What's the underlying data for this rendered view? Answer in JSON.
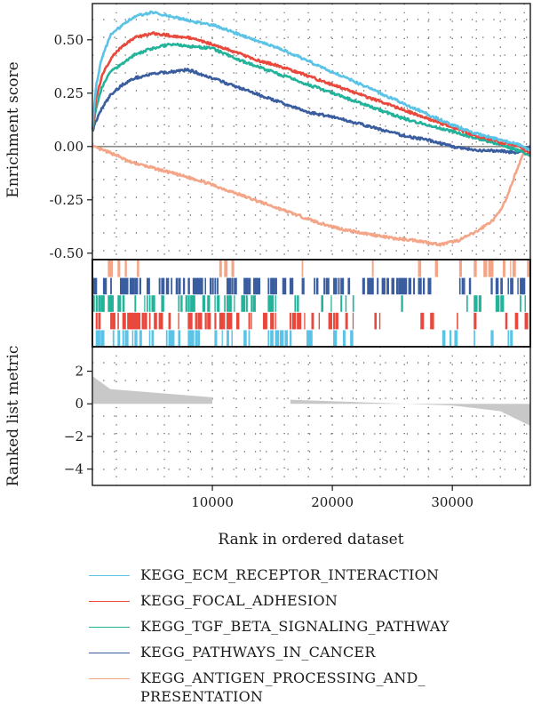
{
  "chart_data": {
    "type": "line",
    "xlabel": "Rank in ordered dataset",
    "xlim": [
      0,
      36500
    ],
    "x_ticks": [
      10000,
      20000,
      30000
    ],
    "x_tick_labels": [
      "10000",
      "20000",
      "30000"
    ],
    "panels": {
      "enrichment": {
        "ylabel": "Enrichment score",
        "ylim": [
          -0.53,
          0.67
        ],
        "y_ticks": [
          0.5,
          0.25,
          0.0,
          -0.25,
          -0.5
        ],
        "y_tick_labels": [
          "0.50",
          "0.25",
          "0.00",
          "-0.25",
          "-0.50"
        ]
      },
      "ranked_metric": {
        "ylabel": "Ranked list metric",
        "ylim": [
          -5,
          3.5
        ],
        "y_ticks": [
          2,
          0,
          -2,
          -4
        ],
        "y_tick_labels": [
          "2",
          "0",
          "−2",
          "−4"
        ],
        "fill_color": "#c8c8c8",
        "gap_range": [
          10000,
          16500
        ]
      }
    },
    "series": [
      {
        "name": "KEGG_ECM_RECEPTOR_INTERACTION",
        "color": "#5bc3e6",
        "x": [
          0,
          300,
          800,
          1500,
          2500,
          3500,
          5000,
          6500,
          8000,
          10000,
          12000,
          14000,
          16000,
          18000,
          20000,
          22000,
          24000,
          26000,
          28000,
          30000,
          32000,
          34000,
          35500,
          36500
        ],
        "y": [
          0.09,
          0.28,
          0.42,
          0.52,
          0.57,
          0.61,
          0.63,
          0.61,
          0.59,
          0.57,
          0.53,
          0.49,
          0.45,
          0.4,
          0.35,
          0.3,
          0.25,
          0.2,
          0.15,
          0.1,
          0.06,
          0.03,
          0.01,
          -0.02
        ]
      },
      {
        "name": "KEGG_FOCAL_ADHESION",
        "color": "#e8493c",
        "x": [
          0,
          300,
          800,
          1500,
          2500,
          3500,
          5000,
          6500,
          8000,
          10000,
          12000,
          14000,
          16000,
          18000,
          20000,
          22000,
          24000,
          26000,
          28000,
          30000,
          32000,
          34000,
          35500,
          36500
        ],
        "y": [
          0.08,
          0.22,
          0.33,
          0.41,
          0.47,
          0.51,
          0.53,
          0.52,
          0.51,
          0.48,
          0.44,
          0.4,
          0.37,
          0.33,
          0.29,
          0.25,
          0.21,
          0.17,
          0.13,
          0.09,
          0.05,
          0.02,
          0.0,
          -0.03
        ]
      },
      {
        "name": "KEGG_TGF_BETA_SIGNALING_PATHWAY",
        "color": "#22b39a",
        "x": [
          0,
          300,
          800,
          1500,
          2500,
          3500,
          5000,
          6500,
          8000,
          10000,
          12000,
          14000,
          16000,
          18000,
          20000,
          22000,
          24000,
          26000,
          28000,
          30000,
          32000,
          34000,
          35500,
          36500
        ],
        "y": [
          0.07,
          0.18,
          0.28,
          0.35,
          0.39,
          0.43,
          0.46,
          0.48,
          0.47,
          0.46,
          0.41,
          0.37,
          0.33,
          0.29,
          0.25,
          0.21,
          0.17,
          0.13,
          0.1,
          0.07,
          0.04,
          0.01,
          -0.02,
          -0.04
        ]
      },
      {
        "name": "KEGG_PATHWAYS_IN_CANCER",
        "color": "#3a5da0",
        "x": [
          0,
          300,
          800,
          1500,
          2500,
          3500,
          5000,
          6500,
          8000,
          10000,
          12000,
          14000,
          16000,
          18000,
          20000,
          22000,
          24000,
          26000,
          28000,
          30000,
          32000,
          34000,
          35500,
          36500
        ],
        "y": [
          0.07,
          0.12,
          0.18,
          0.24,
          0.29,
          0.32,
          0.34,
          0.35,
          0.36,
          0.32,
          0.28,
          0.24,
          0.2,
          0.16,
          0.14,
          0.11,
          0.08,
          0.05,
          0.03,
          0.0,
          -0.02,
          -0.02,
          -0.03,
          0.0
        ]
      },
      {
        "name": "KEGG_ANTIGEN_PROCESSING_AND_\nPRESENTATION",
        "color": "#f4a587",
        "x": [
          0,
          1000,
          2000,
          3000,
          5000,
          7000,
          9000,
          11000,
          13000,
          15000,
          17000,
          19000,
          21000,
          23000,
          25000,
          27000,
          29000,
          30500,
          32000,
          33500,
          34500,
          35300,
          36000,
          36500
        ],
        "y": [
          0.0,
          -0.02,
          -0.04,
          -0.07,
          -0.1,
          -0.13,
          -0.16,
          -0.2,
          -0.24,
          -0.28,
          -0.32,
          -0.36,
          -0.39,
          -0.41,
          -0.43,
          -0.44,
          -0.46,
          -0.44,
          -0.4,
          -0.34,
          -0.25,
          -0.12,
          -0.02,
          0.0
        ]
      }
    ],
    "hit_rows": [
      {
        "series_index": 4,
        "color": "#f4a587"
      },
      {
        "series_index": 3,
        "color": "#3a5da0"
      },
      {
        "series_index": 2,
        "color": "#22b39a"
      },
      {
        "series_index": 1,
        "color": "#e8493c"
      },
      {
        "series_index": 0,
        "color": "#5bc3e6"
      }
    ]
  }
}
